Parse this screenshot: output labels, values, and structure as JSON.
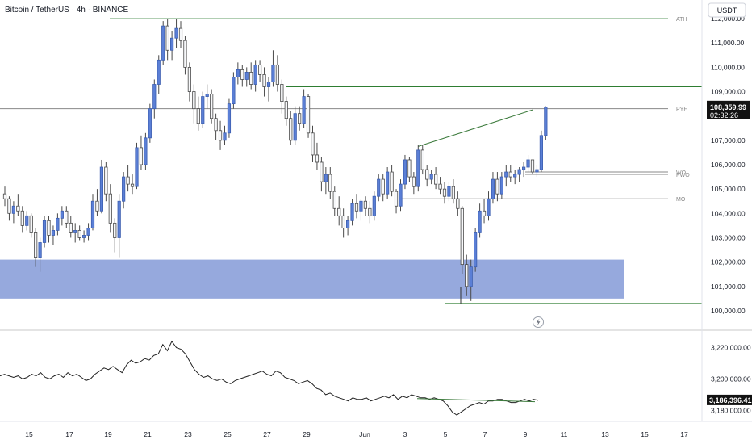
{
  "header": {
    "title": "Bitcoin / TetherUS · 4h · BINANCE"
  },
  "currency_button": "USDT",
  "colors": {
    "up_fill": "#5b7fd6",
    "down_fill": "#f7f8fa",
    "wick": "#4a4a4a",
    "level_line": "#2e7d32",
    "gray_line": "#888888",
    "zone": "#7f96d6",
    "price_tag": "#121212",
    "indicator": "#222222",
    "trend_line": "#3b7a3b"
  },
  "chart_data": [
    {
      "type": "candlestick",
      "ylim": [
        99500,
        112500
      ],
      "y_ticks": [
        "112,000.00",
        "111,000.00",
        "110,000.00",
        "109,000.00",
        "108,000.00",
        "107,000.00",
        "106,000.00",
        "105,000.00",
        "104,000.00",
        "103,000.00",
        "102,000.00",
        "101,000.00",
        "100,000.00"
      ],
      "x_ticks": [
        "15",
        "17",
        "19",
        "21",
        "23",
        "25",
        "27",
        "29",
        "Jun",
        "3",
        "5",
        "7",
        "9",
        "11",
        "13",
        "15",
        "17"
      ],
      "candles": [
        [
          104800,
          105100,
          104300,
          104600
        ],
        [
          104600,
          104700,
          103700,
          104000
        ],
        [
          104000,
          104500,
          103600,
          104300
        ],
        [
          104300,
          104800,
          103900,
          104100
        ],
        [
          104100,
          104300,
          103200,
          103500
        ],
        [
          103500,
          104100,
          103300,
          103900
        ],
        [
          103900,
          104000,
          103000,
          103200
        ],
        [
          103200,
          103400,
          101800,
          102200
        ],
        [
          102200,
          103000,
          101600,
          102800
        ],
        [
          102800,
          103900,
          102600,
          103700
        ],
        [
          103700,
          103900,
          102800,
          103100
        ],
        [
          103100,
          103500,
          102700,
          103300
        ],
        [
          103300,
          104000,
          103100,
          103800
        ],
        [
          103800,
          104300,
          103500,
          104100
        ],
        [
          104100,
          104300,
          103400,
          103600
        ],
        [
          103600,
          103900,
          103000,
          103200
        ],
        [
          103200,
          103600,
          102800,
          103300
        ],
        [
          103300,
          103500,
          102900,
          103000
        ],
        [
          103000,
          103300,
          102800,
          103100
        ],
        [
          103100,
          103600,
          102900,
          103400
        ],
        [
          103400,
          104800,
          103300,
          104500
        ],
        [
          104500,
          105000,
          103900,
          104100
        ],
        [
          104100,
          106200,
          104000,
          105900
        ],
        [
          105900,
          106100,
          104500,
          104800
        ],
        [
          104800,
          105200,
          103200,
          103600
        ],
        [
          103600,
          103800,
          102400,
          103000
        ],
        [
          103000,
          104800,
          102200,
          104500
        ],
        [
          104500,
          105700,
          104200,
          105500
        ],
        [
          105500,
          106000,
          104900,
          105200
        ],
        [
          105200,
          105600,
          104800,
          105100
        ],
        [
          105100,
          106900,
          105000,
          106700
        ],
        [
          106700,
          107200,
          105800,
          106000
        ],
        [
          106000,
          107300,
          105800,
          107100
        ],
        [
          107100,
          108500,
          106900,
          108300
        ],
        [
          108300,
          109500,
          107900,
          109300
        ],
        [
          109300,
          110500,
          108900,
          110300
        ],
        [
          110300,
          111900,
          110100,
          111700
        ],
        [
          111700,
          112000,
          110300,
          110700
        ],
        [
          110700,
          111500,
          110300,
          111200
        ],
        [
          111200,
          112000,
          110800,
          111600
        ],
        [
          111600,
          111900,
          110800,
          111100
        ],
        [
          111100,
          111300,
          109700,
          110000
        ],
        [
          110000,
          110200,
          108600,
          109000
        ],
        [
          109000,
          109300,
          107700,
          108300
        ],
        [
          108300,
          108800,
          107400,
          107700
        ],
        [
          107700,
          109000,
          107500,
          108800
        ],
        [
          108800,
          109300,
          108300,
          108900
        ],
        [
          108900,
          109100,
          107700,
          107900
        ],
        [
          107900,
          108100,
          107000,
          107400
        ],
        [
          107400,
          107800,
          106600,
          107000
        ],
        [
          107000,
          107600,
          106800,
          107300
        ],
        [
          107300,
          108700,
          107100,
          108500
        ],
        [
          108500,
          109800,
          108300,
          109600
        ],
        [
          109600,
          110200,
          109300,
          109900
        ],
        [
          109900,
          110100,
          109200,
          109500
        ],
        [
          109500,
          110000,
          109200,
          109800
        ],
        [
          109800,
          110200,
          109100,
          109300
        ],
        [
          109300,
          110300,
          109000,
          110100
        ],
        [
          110100,
          110300,
          109400,
          109700
        ],
        [
          109700,
          110000,
          108800,
          109200
        ],
        [
          109200,
          109600,
          108600,
          109400
        ],
        [
          109400,
          110700,
          109200,
          110100
        ],
        [
          110100,
          110500,
          109000,
          109300
        ],
        [
          109300,
          109500,
          108100,
          108600
        ],
        [
          108600,
          108800,
          107600,
          107900
        ],
        [
          107900,
          108200,
          106800,
          107000
        ],
        [
          107000,
          108400,
          106800,
          108100
        ],
        [
          108100,
          108400,
          107400,
          107700
        ],
        [
          107700,
          109100,
          107500,
          108800
        ],
        [
          108800,
          108900,
          107100,
          107300
        ],
        [
          107300,
          107600,
          106100,
          106400
        ],
        [
          106400,
          106900,
          105800,
          106100
        ],
        [
          106100,
          106300,
          104900,
          105300
        ],
        [
          105300,
          105900,
          104800,
          105600
        ],
        [
          105600,
          105900,
          104600,
          104900
        ],
        [
          104900,
          105100,
          103900,
          104200
        ],
        [
          104200,
          104700,
          103500,
          103900
        ],
        [
          103900,
          104200,
          103000,
          103400
        ],
        [
          103400,
          103900,
          103100,
          103700
        ],
        [
          103700,
          104600,
          103500,
          104400
        ],
        [
          104400,
          104800,
          103800,
          104100
        ],
        [
          104100,
          104600,
          103700,
          104500
        ],
        [
          104500,
          104700,
          103900,
          104200
        ],
        [
          104200,
          104500,
          103600,
          103900
        ],
        [
          103900,
          104900,
          103700,
          104700
        ],
        [
          104700,
          105600,
          104500,
          105400
        ],
        [
          105400,
          105600,
          104500,
          104800
        ],
        [
          104800,
          105900,
          104600,
          105700
        ],
        [
          105700,
          106000,
          104700,
          104900
        ],
        [
          104900,
          105000,
          104000,
          104300
        ],
        [
          104300,
          105400,
          104100,
          105200
        ],
        [
          105200,
          106400,
          105000,
          106200
        ],
        [
          106200,
          106300,
          105300,
          105500
        ],
        [
          105500,
          105700,
          104800,
          105100
        ],
        [
          105100,
          106800,
          104900,
          106600
        ],
        [
          106600,
          106800,
          105600,
          105800
        ],
        [
          105800,
          106000,
          105100,
          105400
        ],
        [
          105400,
          105800,
          105200,
          105600
        ],
        [
          105600,
          105900,
          105000,
          105200
        ],
        [
          105200,
          105500,
          104800,
          105000
        ],
        [
          105000,
          105300,
          104400,
          104700
        ],
        [
          104700,
          105300,
          104500,
          105100
        ],
        [
          105100,
          105400,
          104400,
          104600
        ],
        [
          104600,
          104900,
          103900,
          104200
        ],
        [
          104200,
          104300,
          101500,
          101900
        ],
        [
          101900,
          102300,
          100600,
          101000
        ],
        [
          101000,
          102100,
          100400,
          101800
        ],
        [
          101800,
          103400,
          101600,
          103200
        ],
        [
          103200,
          104400,
          103000,
          104100
        ],
        [
          104100,
          104600,
          103600,
          103900
        ],
        [
          103900,
          104900,
          103700,
          104600
        ],
        [
          104600,
          105700,
          104400,
          105400
        ],
        [
          105400,
          105700,
          104500,
          104800
        ],
        [
          104800,
          105700,
          104600,
          105500
        ],
        [
          105500,
          106000,
          105100,
          105700
        ],
        [
          105700,
          106000,
          105300,
          105500
        ],
        [
          105500,
          105800,
          105200,
          105600
        ],
        [
          105600,
          105900,
          105300,
          105800
        ],
        [
          105800,
          106100,
          105500,
          105900
        ],
        [
          105900,
          106400,
          105700,
          106200
        ],
        [
          106200,
          106200,
          105600,
          105700
        ],
        [
          105700,
          106000,
          105500,
          105800
        ],
        [
          105800,
          107400,
          105700,
          107200
        ],
        [
          107200,
          108400,
          107000,
          108360
        ]
      ],
      "levels": [
        {
          "label": "ATH",
          "value": 112000
        },
        {
          "label": "",
          "value": 109200
        },
        {
          "label": "PYH",
          "value": 108300
        },
        {
          "label": "WO",
          "value": 105700
        },
        {
          "label": "PWO",
          "value": 105600
        },
        {
          "label": "MO",
          "value": 104600
        }
      ],
      "support_zone": [
        100500,
        102100
      ],
      "support_low_line": 100300,
      "current_price": "108,359.99",
      "countdown": "02:32:26"
    },
    {
      "type": "line",
      "ylim": [
        3174000,
        3228000
      ],
      "y_ticks": [
        "3,220,000.00",
        "3,200,000.00",
        "3,180,000.00"
      ],
      "current_value": "3,186,396.41",
      "values": [
        3202000,
        3203000,
        3202000,
        3201000,
        3202000,
        3200000,
        3201000,
        3203000,
        3202000,
        3204000,
        3201000,
        3200000,
        3202000,
        3203000,
        3201000,
        3204000,
        3202000,
        3203000,
        3201000,
        3199000,
        3200000,
        3203000,
        3205000,
        3207000,
        3206000,
        3208000,
        3206000,
        3204000,
        3209000,
        3212000,
        3210000,
        3211000,
        3213000,
        3212000,
        3215000,
        3216000,
        3222000,
        3218000,
        3224000,
        3220000,
        3219000,
        3216000,
        3211000,
        3206000,
        3203000,
        3201000,
        3202000,
        3200000,
        3199000,
        3200000,
        3198000,
        3197000,
        3199000,
        3200000,
        3201000,
        3202000,
        3203000,
        3204000,
        3205000,
        3203000,
        3202000,
        3205000,
        3204000,
        3201000,
        3200000,
        3199000,
        3197000,
        3198000,
        3199000,
        3197000,
        3194000,
        3193000,
        3190000,
        3191000,
        3189000,
        3188000,
        3187000,
        3186000,
        3188000,
        3187000,
        3187000,
        3188000,
        3186000,
        3187000,
        3188000,
        3189000,
        3188000,
        3190000,
        3187000,
        3189000,
        3188000,
        3190000,
        3189000,
        3188000,
        3188000,
        3187000,
        3188000,
        3187000,
        3186000,
        3183000,
        3179000,
        3177000,
        3179000,
        3181000,
        3183000,
        3184000,
        3185000,
        3184000,
        3186000,
        3186000,
        3187000,
        3187000,
        3186000,
        3185000,
        3185000,
        3186000,
        3187000,
        3186000,
        3187000,
        3186396
      ]
    }
  ]
}
